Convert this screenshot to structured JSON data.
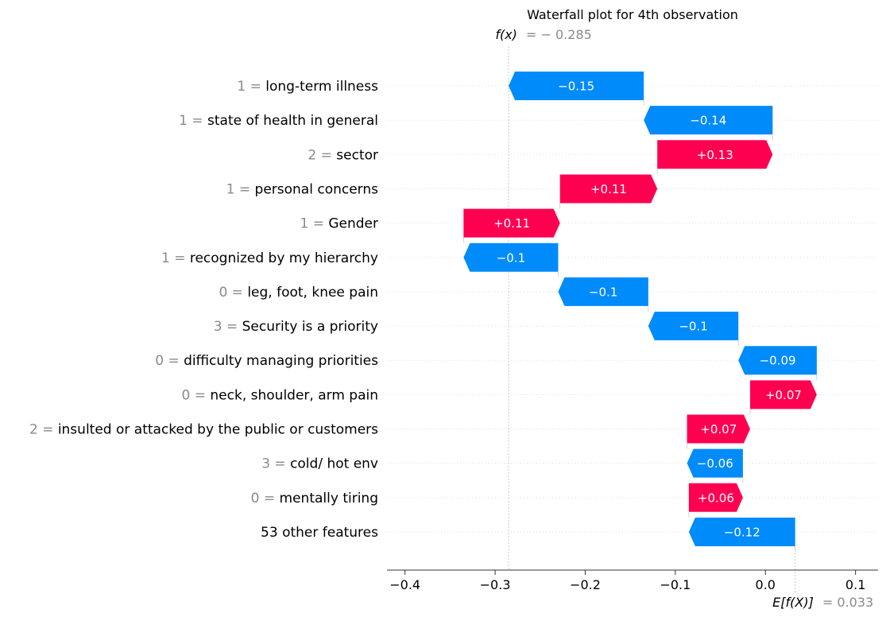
{
  "chart_data": {
    "type": "waterfall",
    "title": "Waterfall plot for 4th observation",
    "fx_label": "f(x)",
    "fx_value": "= − 0.285",
    "efx_label": "E[f(X)]",
    "efx_value": "= 0.033",
    "base_value": 0.033,
    "output_value": -0.285,
    "xlim": [
      -0.42,
      0.125
    ],
    "x_ticks": [
      -0.4,
      -0.3,
      -0.2,
      -0.1,
      0.0,
      0.1
    ],
    "x_tick_labels": [
      "−0.4",
      "−0.3",
      "−0.2",
      "−0.1",
      "0.0",
      "0.1"
    ],
    "colors": {
      "positive": "#ff0051",
      "negative": "#008bfb"
    },
    "features": [
      {
        "value": "1 =",
        "name": "long-term illness",
        "contribution": -0.15,
        "label": "−0.15",
        "start": -0.135,
        "end": -0.285
      },
      {
        "value": "1 =",
        "name": "state of health in general",
        "contribution": -0.14,
        "label": "−0.14",
        "start": 0.008,
        "end": -0.135
      },
      {
        "value": "2 =",
        "name": "sector",
        "contribution": 0.13,
        "label": "+0.13",
        "start": -0.12,
        "end": 0.008
      },
      {
        "value": "1 =",
        "name": "personal concerns",
        "contribution": 0.11,
        "label": "+0.11",
        "start": -0.228,
        "end": -0.12
      },
      {
        "value": "1 =",
        "name": "Gender",
        "contribution": 0.11,
        "label": "+0.11",
        "start": -0.335,
        "end": -0.228
      },
      {
        "value": "1 =",
        "name": "recognized by my hierarchy",
        "contribution": -0.1,
        "label": "−0.1",
        "start": -0.23,
        "end": -0.335
      },
      {
        "value": "0 =",
        "name": "leg, foot, knee pain",
        "contribution": -0.1,
        "label": "−0.1",
        "start": -0.13,
        "end": -0.23
      },
      {
        "value": "3 =",
        "name": "Security is a priority",
        "contribution": -0.1,
        "label": "−0.1",
        "start": -0.03,
        "end": -0.13
      },
      {
        "value": "0 =",
        "name": "difficulty managing priorities",
        "contribution": -0.09,
        "label": "−0.09",
        "start": 0.057,
        "end": -0.03
      },
      {
        "value": "0 =",
        "name": "neck, shoulder, arm pain",
        "contribution": 0.07,
        "label": "+0.07",
        "start": -0.017,
        "end": 0.057
      },
      {
        "value": "2 =",
        "name": "insulted or attacked by the public or customers",
        "contribution": 0.07,
        "label": "+0.07",
        "start": -0.087,
        "end": -0.017
      },
      {
        "value": "3 =",
        "name": "cold/ hot env",
        "contribution": -0.06,
        "label": "−0.06",
        "start": -0.025,
        "end": -0.087
      },
      {
        "value": "0 =",
        "name": "mentally tiring",
        "contribution": 0.06,
        "label": "+0.06",
        "start": -0.085,
        "end": -0.025
      },
      {
        "value": "",
        "name": "53 other features",
        "contribution": -0.12,
        "label": "−0.12",
        "start": 0.033,
        "end": -0.085
      }
    ]
  }
}
